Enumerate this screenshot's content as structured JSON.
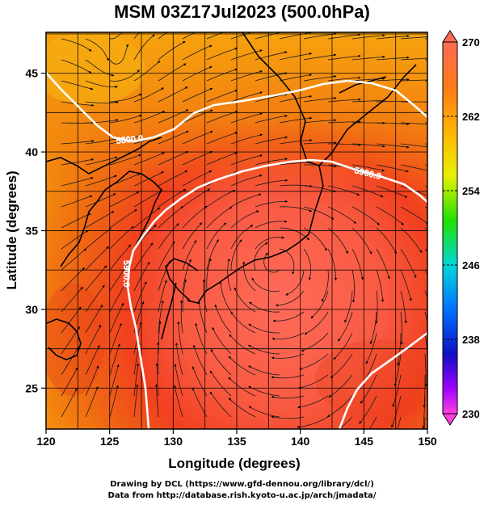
{
  "title": "MSM 03Z17Jul2023 (500.0hPa)",
  "axes": {
    "xlabel": "Longitude (degrees)",
    "ylabel": "Latitude  (degrees)",
    "x_ticks": [
      "120",
      "125",
      "130",
      "135",
      "140",
      "145",
      "150"
    ],
    "y_ticks": [
      "25",
      "30",
      "35",
      "40",
      "45"
    ],
    "xlim": [
      120,
      150
    ],
    "ylim": [
      22.4,
      47.6
    ]
  },
  "colorbar": {
    "labels": [
      "270",
      "262",
      "254",
      "246",
      "238",
      "230"
    ],
    "colors": [
      "#ff6a55",
      "#ffa500",
      "#ffff00",
      "#00ff00",
      "#00c8ff",
      "#0000ff",
      "#8a00ff",
      "#ff00ff"
    ]
  },
  "contours": [
    {
      "label": "5800.0"
    },
    {
      "label": "5900.0"
    },
    {
      "label": "5900.0"
    }
  ],
  "footer": {
    "line1": "Drawing by DCL (https://www.gfd-dennou.org/library/dcl/)",
    "line2": "Data from http://database.rish.kyoto-u.ac.jp/arch/jmadata/"
  }
}
